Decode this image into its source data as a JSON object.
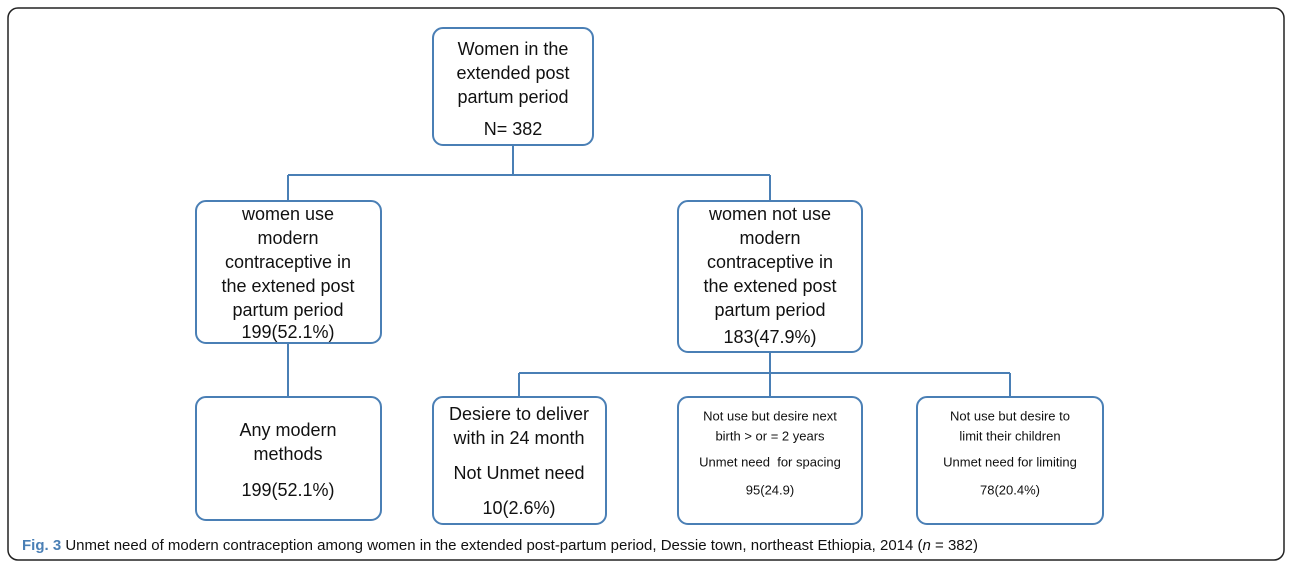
{
  "nodes": [
    {
      "lines": [
        "Women in the",
        "extended post",
        "partum period",
        "N= 382"
      ]
    },
    {
      "lines": [
        "women use",
        "modern",
        "contraceptive in",
        "the extened post",
        "partum period",
        "199(52.1%)"
      ]
    },
    {
      "lines": [
        "women not use",
        "modern",
        "contraceptive in",
        "the extened post",
        "partum period",
        "183(47.9%)"
      ]
    },
    {
      "lines": [
        "Any modern",
        "methods",
        "199(52.1%)"
      ]
    },
    {
      "lines": [
        "Desiere to deliver",
        "with in 24 month",
        "Not Unmet need",
        "10(2.6%)"
      ]
    },
    {
      "lines": [
        "Not use but desire next",
        "birth > or = 2 years",
        "Unmet need  for spacing",
        "95(24.9)"
      ]
    },
    {
      "lines": [
        "Not use but desire to",
        "limit their children",
        "Unmet need for limiting",
        "78(20.4%)"
      ]
    }
  ],
  "caption": {
    "label": "Fig. 3",
    "text": "Unmet need of modern contraception among women in the extended post-partum period, Dessie town, northeast Ethiopia, 2014 (",
    "variable": "n",
    "tail": " = 382)"
  }
}
